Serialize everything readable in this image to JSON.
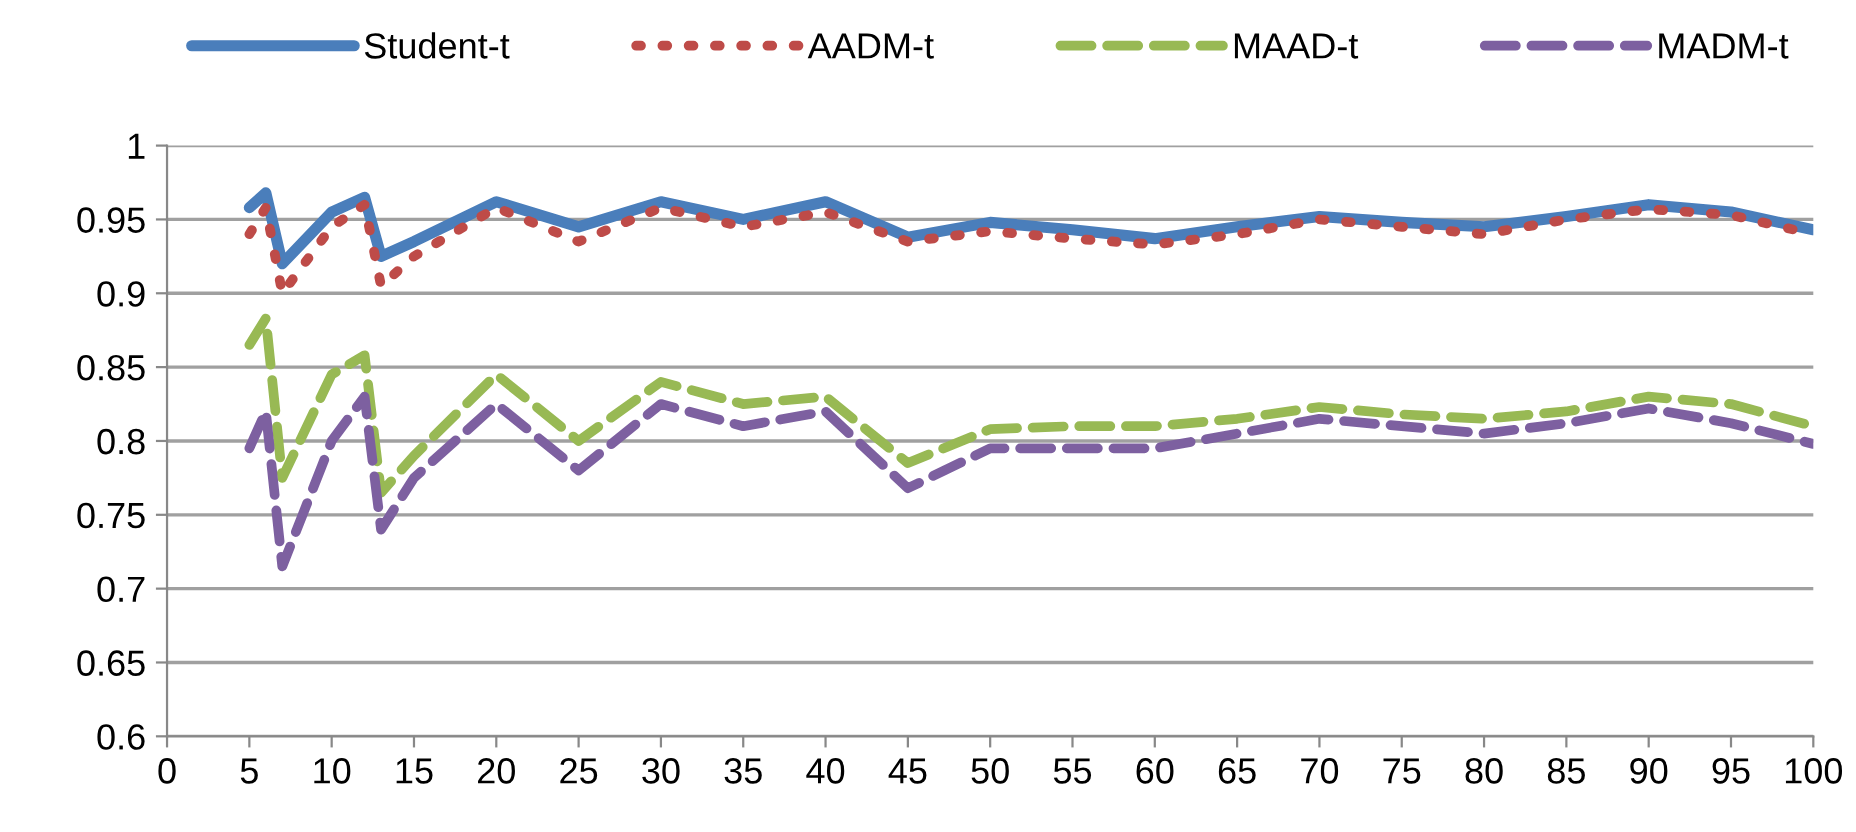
{
  "chart_data": {
    "type": "line",
    "x": [
      5,
      6,
      7,
      10,
      12,
      13,
      15,
      20,
      25,
      30,
      35,
      40,
      45,
      50,
      55,
      60,
      65,
      70,
      75,
      80,
      85,
      90,
      95,
      100
    ],
    "series": [
      {
        "name": "Student-t",
        "color": "#4a7ebb",
        "line_style": "solid",
        "values": [
          0.958,
          0.968,
          0.92,
          0.955,
          0.965,
          0.925,
          0.935,
          0.962,
          0.945,
          0.962,
          0.95,
          0.962,
          0.938,
          0.948,
          0.943,
          0.937,
          0.945,
          0.952,
          0.948,
          0.945,
          0.952,
          0.96,
          0.955,
          0.943
        ]
      },
      {
        "name": "AADM-t",
        "color": "#be4b48",
        "line_style": "dotted",
        "values": [
          0.94,
          0.958,
          0.9,
          0.945,
          0.96,
          0.905,
          0.925,
          0.958,
          0.935,
          0.958,
          0.945,
          0.955,
          0.935,
          0.942,
          0.937,
          0.933,
          0.94,
          0.95,
          0.945,
          0.94,
          0.95,
          0.957,
          0.953,
          0.94
        ]
      },
      {
        "name": "MAAD-t",
        "color": "#98b954",
        "line_style": "dashed",
        "values": [
          0.865,
          0.883,
          0.775,
          0.845,
          0.858,
          0.765,
          0.79,
          0.845,
          0.8,
          0.84,
          0.825,
          0.83,
          0.785,
          0.808,
          0.81,
          0.81,
          0.815,
          0.823,
          0.818,
          0.815,
          0.82,
          0.83,
          0.825,
          0.81
        ]
      },
      {
        "name": "MADM-t",
        "color": "#7d60a0",
        "line_style": "dashed",
        "values": [
          0.795,
          0.82,
          0.715,
          0.8,
          0.83,
          0.74,
          0.775,
          0.825,
          0.78,
          0.825,
          0.81,
          0.82,
          0.768,
          0.795,
          0.795,
          0.795,
          0.805,
          0.815,
          0.81,
          0.805,
          0.812,
          0.822,
          0.812,
          0.798
        ]
      }
    ],
    "xlim": [
      0,
      100
    ],
    "xticks": [
      0,
      5,
      10,
      15,
      20,
      25,
      30,
      35,
      40,
      45,
      50,
      55,
      60,
      65,
      70,
      75,
      80,
      85,
      90,
      95,
      100
    ],
    "ylim": [
      0.6,
      1
    ],
    "yticks": [
      0.6,
      0.65,
      0.7,
      0.75,
      0.8,
      0.85,
      0.9,
      0.95,
      1
    ],
    "grid": "y",
    "legend": "top",
    "marker": "none"
  }
}
